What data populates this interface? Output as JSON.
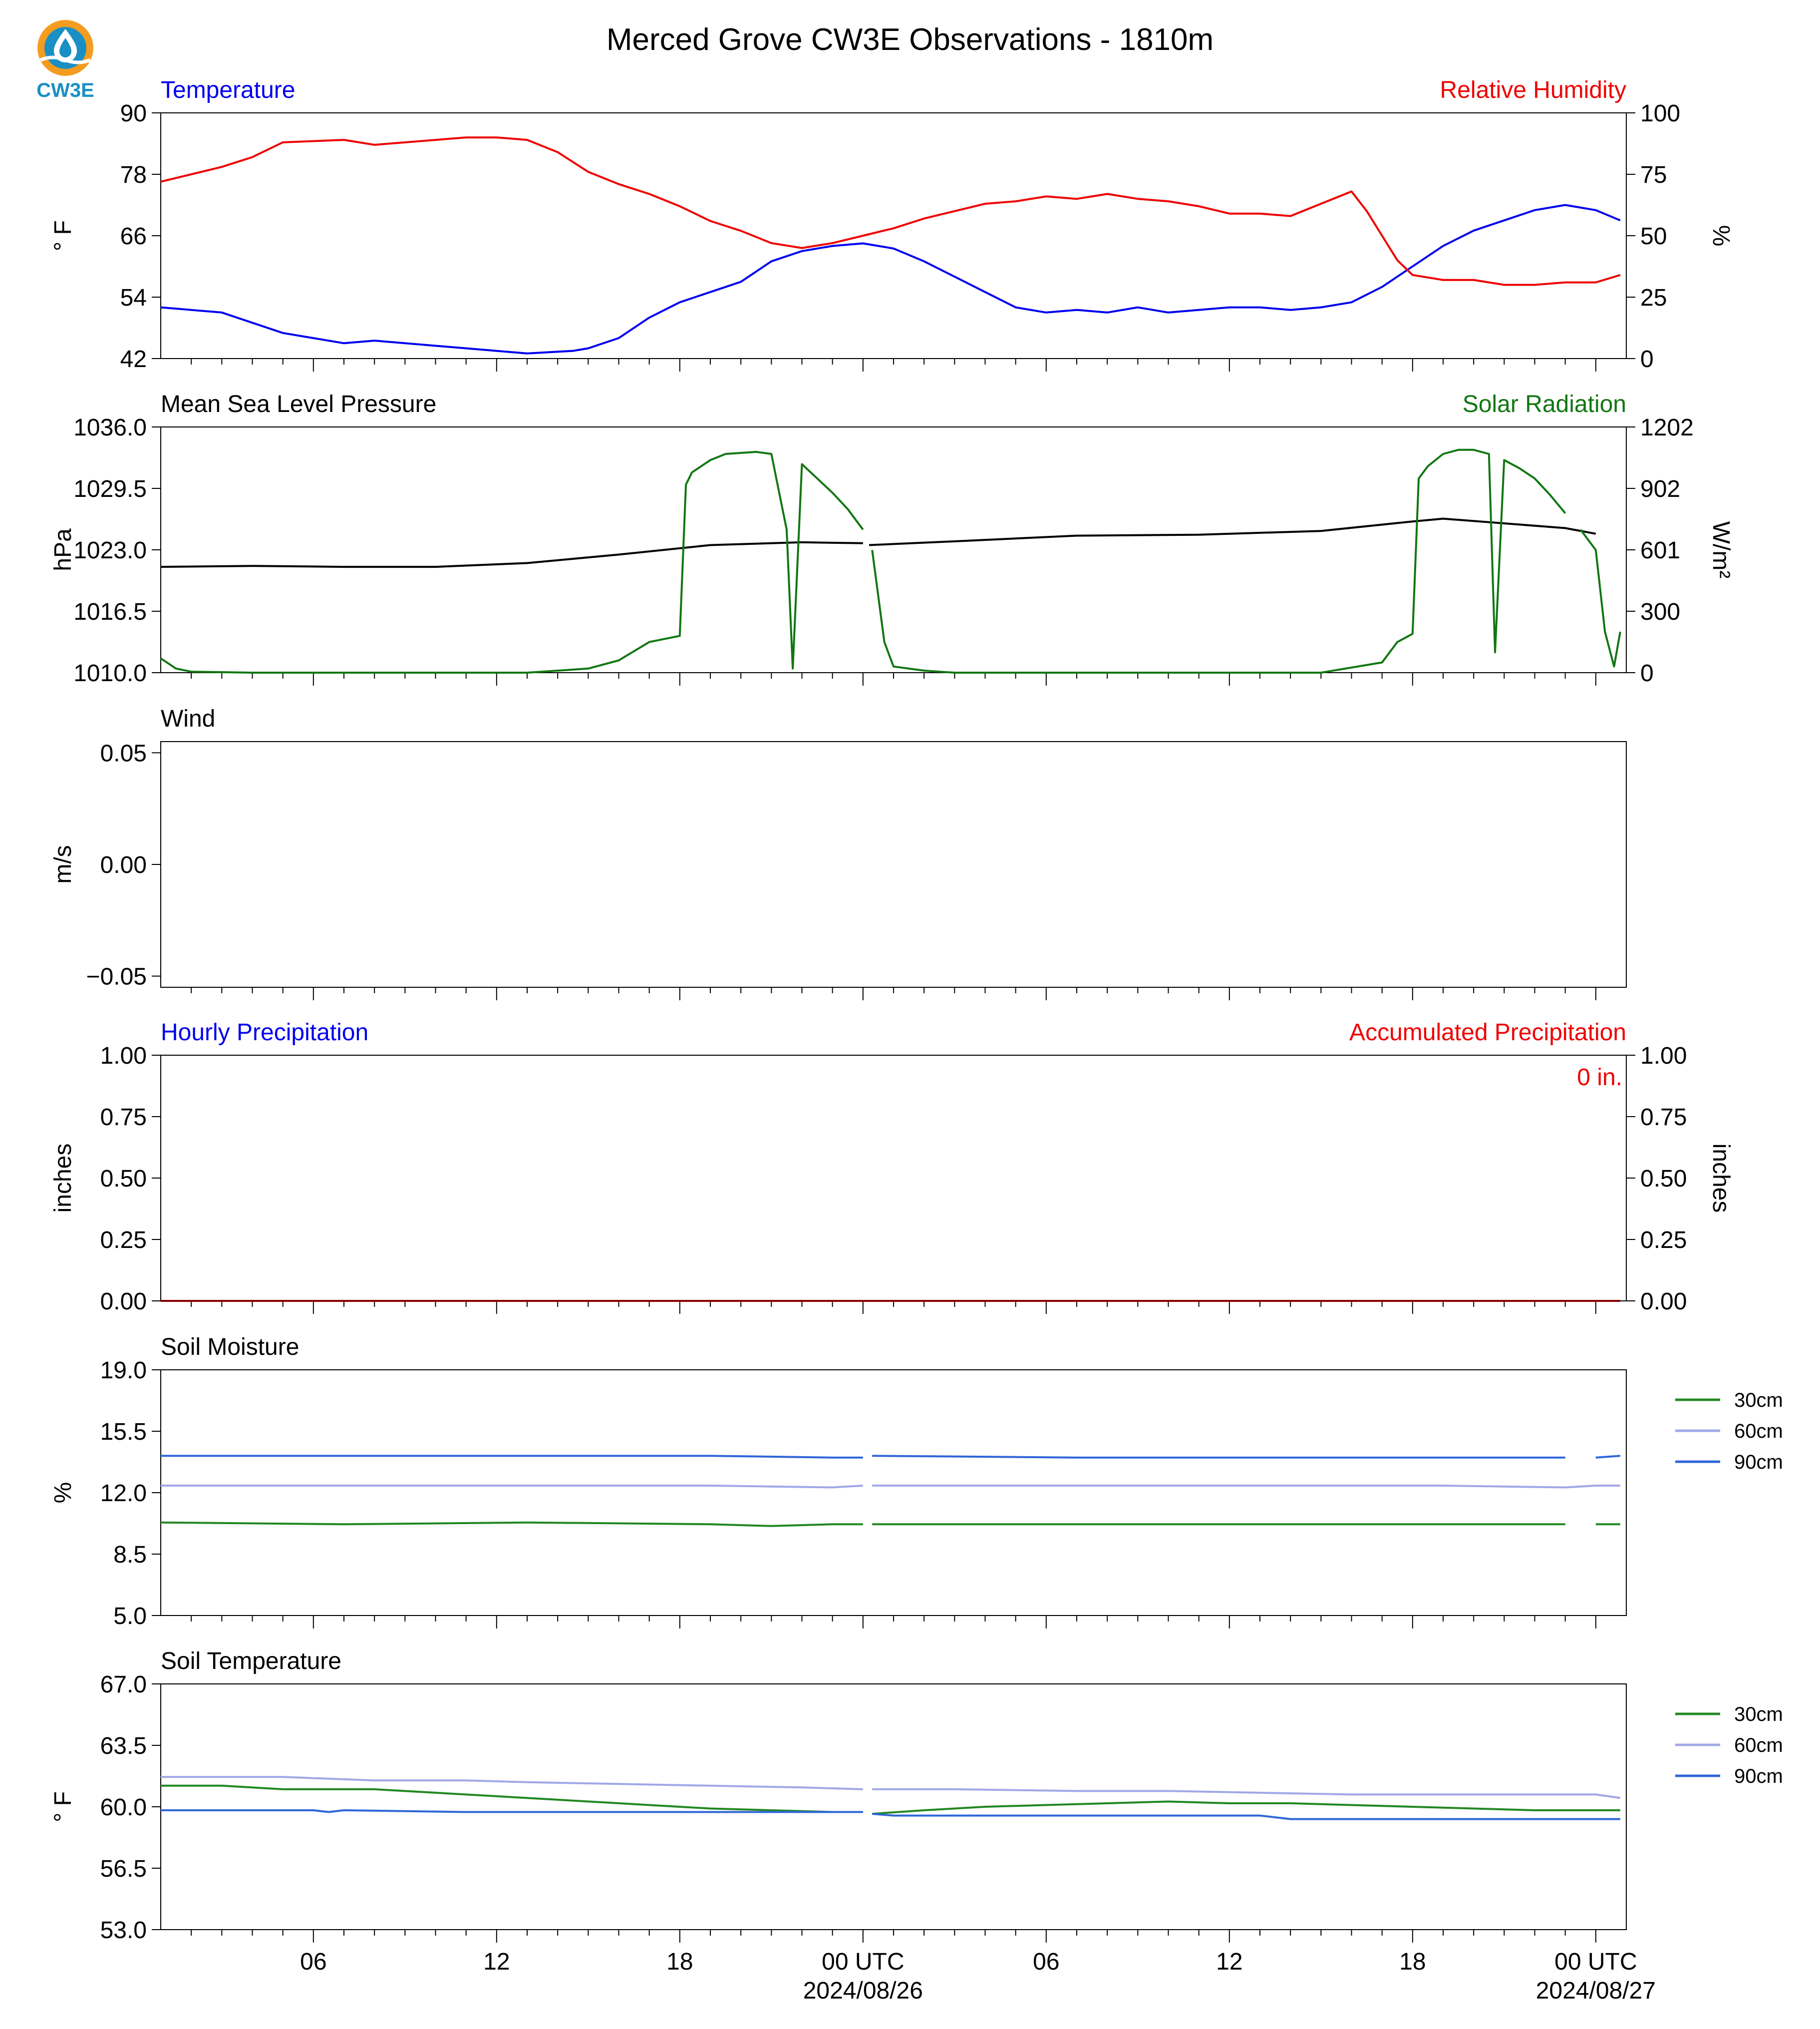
{
  "title": "Merced Grove CW3E Observations - 1810m",
  "logo": {
    "text": "CW3E",
    "icon": "cw3e-water-drop-logo"
  },
  "x_axis": {
    "start_hour": 0,
    "end_hour": 48,
    "major_ticks": [
      {
        "hour": 5,
        "label": "06",
        "sub": ""
      },
      {
        "hour": 11,
        "label": "12",
        "sub": ""
      },
      {
        "hour": 17,
        "label": "18",
        "sub": ""
      },
      {
        "hour": 23,
        "label": "00 UTC",
        "sub": "2024/08/26"
      },
      {
        "hour": 29,
        "label": "06",
        "sub": ""
      },
      {
        "hour": 35,
        "label": "12",
        "sub": ""
      },
      {
        "hour": 41,
        "label": "18",
        "sub": ""
      },
      {
        "hour": 47,
        "label": "00 UTC",
        "sub": "2024/08/27"
      }
    ]
  },
  "colors": {
    "temperature": "#0000ee",
    "humidity": "#ee0000",
    "pressure": "#000000",
    "solar": "#117711",
    "soil30": "#228822",
    "soil60": "#a0a8e6",
    "soil90": "#2f66d8"
  },
  "chart_data": [
    {
      "type": "line",
      "title_left": "Temperature",
      "title_right": "Relative Humidity",
      "ylabel_left": "° F",
      "ylabel_right": "%",
      "ylim_left": [
        42,
        90
      ],
      "ylim_right": [
        0,
        100
      ],
      "yticks_left": [
        "42",
        "54",
        "66",
        "78",
        "90"
      ],
      "yticks_right": [
        "0",
        "25",
        "50",
        "75",
        "100"
      ],
      "series": [
        {
          "name": "Temperature",
          "axis": "left",
          "x": [
            0,
            2,
            3,
            4,
            6,
            7,
            10,
            11,
            12,
            13.5,
            14,
            15,
            16,
            17,
            18,
            19,
            19.5,
            20,
            21,
            22,
            23,
            24,
            25,
            26,
            27,
            28,
            29,
            30,
            31,
            32,
            33,
            34,
            35,
            36,
            37,
            38,
            39,
            40,
            41,
            42,
            43,
            44,
            45,
            46,
            47,
            47.8
          ],
          "y": [
            52,
            51,
            49,
            47,
            45,
            45.5,
            44,
            43.5,
            43,
            43.5,
            44,
            46,
            50,
            53,
            55,
            57,
            59,
            61,
            63,
            64,
            64.5,
            63.5,
            61,
            58,
            55,
            52,
            51,
            51.5,
            51,
            52,
            51,
            51.5,
            52,
            52,
            51.5,
            52,
            53,
            56,
            60,
            64,
            67,
            69,
            71,
            72,
            71,
            69
          ],
          "gaps": [
            [
              22.9,
              23.1
            ]
          ]
        },
        {
          "name": "Relative Humidity",
          "axis": "right",
          "x": [
            0,
            2,
            3,
            4,
            6,
            7,
            10,
            11,
            12,
            13,
            14,
            15,
            16,
            17,
            18,
            19,
            20,
            21,
            22,
            23,
            24,
            25,
            26,
            27,
            28,
            29,
            30,
            31,
            32,
            33,
            34,
            35,
            36,
            37,
            38,
            39,
            39.5,
            40,
            40.5,
            41,
            42,
            43,
            44,
            45,
            46,
            47,
            47.8
          ],
          "y": [
            72,
            78,
            82,
            88,
            89,
            87,
            90,
            90,
            89,
            84,
            76,
            71,
            67,
            62,
            56,
            52,
            47,
            45,
            47,
            50,
            53,
            57,
            60,
            63,
            64,
            66,
            65,
            67,
            65,
            64,
            62,
            59,
            59,
            58,
            63,
            68,
            60,
            50,
            40,
            34,
            32,
            32,
            30,
            30,
            31,
            31,
            34
          ],
          "gaps": [
            [
              22.9,
              23.1
            ]
          ]
        }
      ]
    },
    {
      "type": "line",
      "title_left": "Mean Sea Level Pressure",
      "title_right": "Solar Radiation",
      "ylabel_left": "hPa",
      "ylabel_right": "W/m²",
      "ylim_left": [
        1010,
        1036
      ],
      "ylim_right": [
        0,
        1202
      ],
      "yticks_left": [
        "1010.0",
        "1016.5",
        "1023.0",
        "1029.5",
        "1036.0"
      ],
      "yticks_right": [
        "0",
        "300",
        "601",
        "902",
        "1202"
      ],
      "series": [
        {
          "name": "Mean Sea Level Pressure",
          "axis": "left",
          "x": [
            0,
            3,
            6,
            9,
            12,
            15,
            18,
            21,
            23,
            23.2,
            26,
            30,
            34,
            38,
            41,
            42,
            44,
            46,
            47,
            47.8
          ],
          "y": [
            1021.2,
            1021.3,
            1021.2,
            1021.2,
            1021.6,
            1022.5,
            1023.5,
            1023.8,
            1023.7,
            1023.5,
            1023.9,
            1024.5,
            1024.6,
            1025.0,
            1026.0,
            1026.3,
            1025.8,
            1025.3,
            1024.7,
            1025.1
          ],
          "gaps": [
            [
              23.0,
              23.2
            ],
            [
              47.1,
              47.3
            ]
          ]
        },
        {
          "name": "Solar Radiation",
          "axis": "right",
          "x": [
            0,
            0.5,
            1,
            3,
            10,
            12,
            14,
            15,
            16,
            17,
            17.2,
            17.4,
            18,
            18.5,
            19.5,
            20,
            20.5,
            20.7,
            21,
            21.5,
            22,
            22.5,
            23,
            23.3,
            23.7,
            24,
            25,
            26,
            28,
            36,
            38,
            40,
            40.5,
            41,
            41.2,
            41.5,
            42,
            42.5,
            43,
            43.5,
            43.7,
            44,
            44.5,
            45,
            45.5,
            46,
            46.5,
            47,
            47.3,
            47.6,
            47.8
          ],
          "y": [
            70,
            20,
            5,
            0,
            0,
            0,
            20,
            60,
            150,
            180,
            920,
            980,
            1040,
            1070,
            1080,
            1070,
            700,
            20,
            1020,
            950,
            880,
            800,
            700,
            600,
            150,
            30,
            10,
            0,
            0,
            0,
            0,
            50,
            150,
            190,
            950,
            1010,
            1070,
            1090,
            1090,
            1070,
            100,
            1040,
            1000,
            950,
            870,
            780,
            700,
            600,
            200,
            30,
            200
          ],
          "gaps": [
            [
              22.8,
              23.3
            ],
            [
              46.2,
              46.6
            ]
          ]
        }
      ]
    },
    {
      "type": "line",
      "title_left": "Wind",
      "title_right": "",
      "ylabel_left": "m/s",
      "ylabel_right": "",
      "ylim_left": [
        -0.055,
        0.055
      ],
      "ylim_right": null,
      "yticks_left": [
        "−0.05",
        "0.00",
        "0.05"
      ],
      "yticks_left_values": [
        -0.05,
        0,
        0.05
      ],
      "yticks_right": [],
      "series": []
    },
    {
      "type": "bar",
      "title_left": "Hourly Precipitation",
      "title_right": "Accumulated Precipitation",
      "annotation": "0 in.",
      "ylabel_left": "inches",
      "ylabel_right": "inches",
      "ylim_left": [
        0,
        1
      ],
      "ylim_right": [
        0,
        1
      ],
      "yticks_left": [
        "0.00",
        "0.25",
        "0.50",
        "0.75",
        "1.00"
      ],
      "yticks_right": [
        "0.00",
        "0.25",
        "0.50",
        "0.75",
        "1.00"
      ],
      "series": [
        {
          "name": "Hourly Precipitation",
          "axis": "left",
          "x": [
            0,
            47.8
          ],
          "y": [
            0,
            0
          ]
        },
        {
          "name": "Accumulated Precipitation",
          "axis": "right",
          "x": [
            0,
            47.8
          ],
          "y": [
            0,
            0
          ]
        }
      ]
    },
    {
      "type": "line",
      "title_left": "Soil Moisture",
      "title_right": "",
      "ylabel_left": "%",
      "ylabel_right": "",
      "ylim_left": [
        5,
        19
      ],
      "ylim_right": null,
      "yticks_left": [
        "5.0",
        "8.5",
        "12.0",
        "15.5",
        "19.0"
      ],
      "yticks_right": [],
      "legend": [
        "30cm",
        "60cm",
        "90cm"
      ],
      "series": [
        {
          "name": "30cm",
          "axis": "left",
          "x": [
            0,
            6,
            12,
            18,
            20,
            22,
            23,
            23.3,
            30,
            36,
            42,
            46,
            47,
            47.8
          ],
          "y": [
            10.3,
            10.2,
            10.3,
            10.2,
            10.1,
            10.2,
            10.2,
            10.2,
            10.2,
            10.2,
            10.2,
            10.2,
            10.2,
            10.2
          ],
          "gaps": [
            [
              22.9,
              23.3
            ],
            [
              46.2,
              47.2
            ]
          ]
        },
        {
          "name": "60cm",
          "axis": "left",
          "x": [
            0,
            6,
            12,
            18,
            22,
            23,
            23.3,
            30,
            36,
            42,
            46,
            47,
            47.8
          ],
          "y": [
            12.4,
            12.4,
            12.4,
            12.4,
            12.3,
            12.4,
            12.4,
            12.4,
            12.4,
            12.4,
            12.3,
            12.4,
            12.4
          ],
          "gaps": [
            [
              22.9,
              23.3
            ]
          ]
        },
        {
          "name": "90cm",
          "axis": "left",
          "x": [
            0,
            6,
            12,
            18,
            22,
            23,
            23.3,
            30,
            36,
            42,
            46,
            47,
            47.8
          ],
          "y": [
            14.1,
            14.1,
            14.1,
            14.1,
            14.0,
            14.0,
            14.1,
            14.0,
            14.0,
            14.0,
            14.0,
            14.0,
            14.1
          ],
          "gaps": [
            [
              22.9,
              23.3
            ],
            [
              46.2,
              47.2
            ]
          ]
        }
      ]
    },
    {
      "type": "line",
      "title_left": "Soil Temperature",
      "title_right": "",
      "ylabel_left": "° F",
      "ylabel_right": "",
      "ylim_left": [
        53,
        67
      ],
      "ylim_right": null,
      "yticks_left": [
        "53.0",
        "56.5",
        "60.0",
        "63.5",
        "67.0"
      ],
      "yticks_right": [],
      "legend": [
        "30cm",
        "60cm",
        "90cm"
      ],
      "series": [
        {
          "name": "30cm",
          "axis": "left",
          "x": [
            0,
            2,
            4,
            7,
            9,
            11,
            13,
            16,
            18,
            20,
            22,
            23,
            23.3,
            25,
            27,
            29,
            31,
            33,
            35,
            37,
            39,
            41,
            43,
            45,
            47,
            47.8
          ],
          "y": [
            61.2,
            61.2,
            61.0,
            61.0,
            60.8,
            60.6,
            60.4,
            60.1,
            59.9,
            59.8,
            59.7,
            59.7,
            59.6,
            59.8,
            60.0,
            60.1,
            60.2,
            60.3,
            60.2,
            60.2,
            60.1,
            60.0,
            59.9,
            59.8,
            59.8,
            59.8
          ],
          "gaps": [
            [
              22.9,
              23.3
            ],
            [
              46.2,
              47.2
            ]
          ]
        },
        {
          "name": "60cm",
          "axis": "left",
          "x": [
            0,
            4,
            7,
            10,
            12,
            15,
            18,
            21,
            23,
            23.3,
            26,
            30,
            33,
            36,
            39,
            42,
            45,
            47,
            47.8
          ],
          "y": [
            61.7,
            61.7,
            61.5,
            61.5,
            61.4,
            61.3,
            61.2,
            61.1,
            61.0,
            61.0,
            61.0,
            60.9,
            60.9,
            60.8,
            60.7,
            60.7,
            60.7,
            60.7,
            60.5
          ],
          "gaps": [
            [
              22.9,
              23.3
            ],
            [
              46.2,
              47.2
            ]
          ]
        },
        {
          "name": "90cm",
          "axis": "left",
          "x": [
            0,
            5,
            5.5,
            6,
            10,
            16,
            20,
            22,
            23,
            23.3,
            24,
            30,
            34,
            36,
            37,
            40,
            44,
            47,
            47.8
          ],
          "y": [
            59.8,
            59.8,
            59.7,
            59.8,
            59.7,
            59.7,
            59.7,
            59.7,
            59.7,
            59.6,
            59.5,
            59.5,
            59.5,
            59.5,
            59.3,
            59.3,
            59.3,
            59.3,
            59.3
          ],
          "gaps": [
            [
              22.9,
              23.3
            ],
            [
              46.2,
              47.2
            ]
          ]
        }
      ]
    }
  ]
}
